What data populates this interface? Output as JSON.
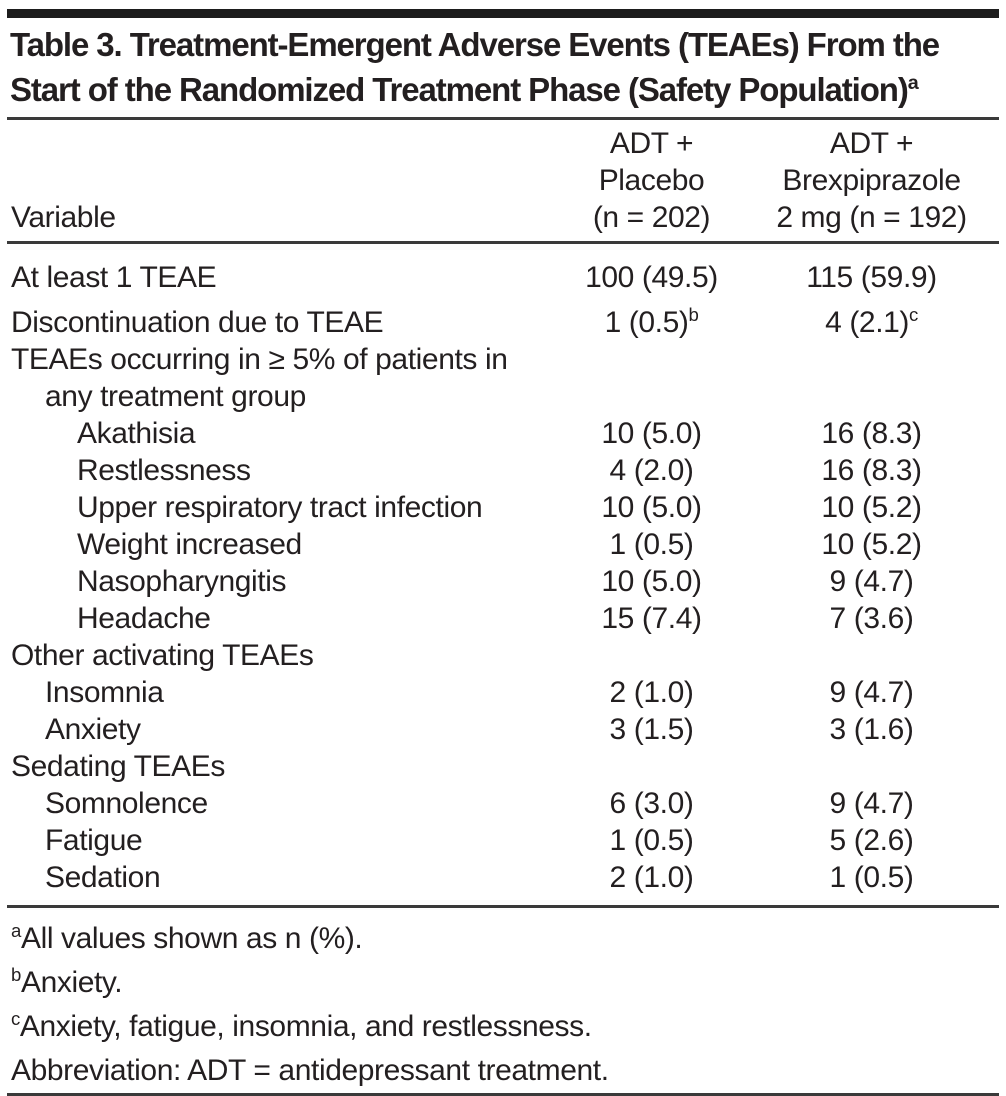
{
  "colors": {
    "text": "#231f20",
    "rule": "#3a3a3a",
    "top_bar": "#1d1d1d",
    "background": "#ffffff"
  },
  "title": {
    "text": "Table 3. Treatment-Emergent Adverse Events (TEAEs) From the Start of the Randomized Treatment Phase (Safety Population)",
    "sup": "a"
  },
  "table": {
    "columns": [
      {
        "label": "Variable"
      },
      {
        "label_lines": [
          "ADT + Placebo",
          "(n = 202)"
        ]
      },
      {
        "label_lines": [
          "ADT +",
          "Brexpiprazole",
          "2 mg (n = 192)"
        ]
      }
    ],
    "rows": [
      {
        "label": "At least 1 TEAE",
        "adt_placebo": "100 (49.5)",
        "adt_brexpiprazole": "115 (59.9)"
      },
      {
        "label": "Discontinuation due to TEAE",
        "adt_placebo": "1 (0.5)",
        "adt_placebo_sup": "b",
        "adt_brexpiprazole": "4 (2.1)",
        "adt_brexpiprazole_sup": "c"
      },
      {
        "label": "TEAEs occurring in ≥ 5% of patients in any treatment group"
      },
      {
        "label": "Akathisia",
        "adt_placebo": "10 (5.0)",
        "adt_brexpiprazole": "16 (8.3)"
      },
      {
        "label": "Restlessness",
        "adt_placebo": "4 (2.0)",
        "adt_brexpiprazole": "16 (8.3)"
      },
      {
        "label": "Upper respiratory tract infection",
        "adt_placebo": "10 (5.0)",
        "adt_brexpiprazole": "10 (5.2)"
      },
      {
        "label": "Weight increased",
        "adt_placebo": "1 (0.5)",
        "adt_brexpiprazole": "10 (5.2)"
      },
      {
        "label": "Nasopharyngitis",
        "adt_placebo": "10 (5.0)",
        "adt_brexpiprazole": "9 (4.7)"
      },
      {
        "label": "Headache",
        "adt_placebo": "15 (7.4)",
        "adt_brexpiprazole": "7 (3.6)"
      },
      {
        "label": "Other activating TEAEs"
      },
      {
        "label": "Insomnia",
        "adt_placebo": "2 (1.0)",
        "adt_brexpiprazole": "9 (4.7)"
      },
      {
        "label": "Anxiety",
        "adt_placebo": "3 (1.5)",
        "adt_brexpiprazole": "3 (1.6)"
      },
      {
        "label": "Sedating TEAEs"
      },
      {
        "label": "Somnolence",
        "adt_placebo": "6 (3.0)",
        "adt_brexpiprazole": "9 (4.7)"
      },
      {
        "label": "Fatigue",
        "adt_placebo": "1 (0.5)",
        "adt_brexpiprazole": "5 (2.6)"
      },
      {
        "label": "Sedation",
        "adt_placebo": "2 (1.0)",
        "adt_brexpiprazole": "1 (0.5)"
      }
    ]
  },
  "footnotes": [
    {
      "sup": "a",
      "text": "All values shown as n (%)."
    },
    {
      "sup": "b",
      "text": "Anxiety."
    },
    {
      "sup": "c",
      "text": "Anxiety, fatigue, insomnia, and restlessness."
    },
    {
      "sup": "",
      "text": "Abbreviation: ADT = antidepressant treatment."
    }
  ]
}
